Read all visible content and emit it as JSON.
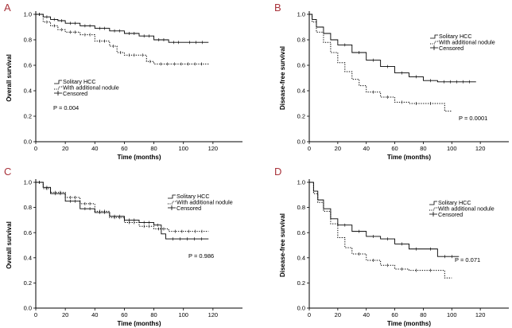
{
  "chart_data": [
    {
      "type": "line",
      "panel": "A",
      "ylabel": "Overall survival",
      "xlabel": "Time (months)",
      "xlim": [
        0,
        140
      ],
      "xticks": [
        0,
        20,
        40,
        60,
        80,
        100,
        120
      ],
      "ylim": [
        0,
        1.0
      ],
      "yticks": [
        "0.0",
        "0.2",
        "0.4",
        "0.6",
        "0.8",
        "1.0"
      ],
      "legend": [
        "Solitary HCC",
        "With additional nodule",
        "Censored"
      ],
      "legend_position": "left-middle",
      "pvalue": "P = 0.004",
      "series": [
        {
          "name": "Solitary HCC",
          "style": "solid",
          "x": [
            0,
            5,
            10,
            15,
            20,
            30,
            40,
            50,
            60,
            70,
            80,
            90,
            100,
            117
          ],
          "y": [
            1.0,
            0.98,
            0.96,
            0.95,
            0.93,
            0.91,
            0.89,
            0.87,
            0.85,
            0.83,
            0.8,
            0.78,
            0.78,
            0.78
          ]
        },
        {
          "name": "With additional nodule",
          "style": "dotted",
          "x": [
            0,
            5,
            10,
            15,
            20,
            30,
            40,
            50,
            55,
            60,
            70,
            75,
            80,
            117
          ],
          "y": [
            1.0,
            0.94,
            0.91,
            0.88,
            0.86,
            0.84,
            0.79,
            0.75,
            0.7,
            0.68,
            0.68,
            0.63,
            0.61,
            0.61
          ]
        }
      ]
    },
    {
      "type": "line",
      "panel": "B",
      "ylabel": "Disease-free survival",
      "xlabel": "Time (months)",
      "xlim": [
        0,
        140
      ],
      "xticks": [
        0,
        20,
        40,
        60,
        80,
        100,
        120
      ],
      "ylim": [
        0,
        1.0
      ],
      "yticks": [
        "0.0",
        "0.2",
        "0.4",
        "0.6",
        "0.8",
        "1.0"
      ],
      "legend": [
        "Solitary HCC",
        "With additional nodule",
        "Censored"
      ],
      "legend_position": "top-right",
      "pvalue": "P = 0.0001",
      "series": [
        {
          "name": "Solitary HCC",
          "style": "solid",
          "x": [
            0,
            2,
            5,
            10,
            15,
            20,
            30,
            40,
            50,
            60,
            70,
            80,
            90,
            117
          ],
          "y": [
            1.0,
            0.96,
            0.9,
            0.85,
            0.8,
            0.76,
            0.7,
            0.64,
            0.59,
            0.54,
            0.51,
            0.48,
            0.47,
            0.47
          ]
        },
        {
          "name": "With additional nodule",
          "style": "dotted",
          "x": [
            0,
            2,
            5,
            10,
            15,
            20,
            25,
            30,
            35,
            40,
            50,
            60,
            70,
            80,
            90,
            95,
            100
          ],
          "y": [
            1.0,
            0.94,
            0.86,
            0.78,
            0.7,
            0.62,
            0.55,
            0.49,
            0.44,
            0.39,
            0.35,
            0.31,
            0.3,
            0.3,
            0.3,
            0.24,
            0.24
          ]
        }
      ]
    },
    {
      "type": "line",
      "panel": "C",
      "ylabel": "Overall survival",
      "xlabel": "Time (months)",
      "xlim": [
        0,
        140
      ],
      "xticks": [
        0,
        20,
        40,
        60,
        80,
        100,
        120
      ],
      "ylim": [
        0,
        1.0
      ],
      "yticks": [
        "0.0",
        "0.2",
        "0.4",
        "0.6",
        "0.8",
        "1.0"
      ],
      "legend": [
        "Solitary HCC",
        "With additional nodule",
        "Censored"
      ],
      "legend_position": "top-right",
      "pvalue": "P = 0.986",
      "series": [
        {
          "name": "Solitary HCC",
          "style": "solid",
          "x": [
            0,
            5,
            10,
            20,
            30,
            40,
            50,
            60,
            70,
            80,
            85,
            88,
            117
          ],
          "y": [
            1.0,
            0.96,
            0.91,
            0.85,
            0.79,
            0.76,
            0.73,
            0.7,
            0.68,
            0.66,
            0.59,
            0.55,
            0.55
          ]
        },
        {
          "name": "With additional nodule",
          "style": "dotted",
          "x": [
            0,
            5,
            10,
            20,
            30,
            40,
            50,
            60,
            70,
            80,
            90,
            117
          ],
          "y": [
            1.0,
            0.95,
            0.92,
            0.88,
            0.83,
            0.77,
            0.72,
            0.68,
            0.65,
            0.63,
            0.61,
            0.61
          ]
        }
      ]
    },
    {
      "type": "line",
      "panel": "D",
      "ylabel": "Disease-free survival",
      "xlabel": "Time (months)",
      "xlim": [
        0,
        140
      ],
      "xticks": [
        0,
        20,
        40,
        60,
        80,
        100,
        120
      ],
      "ylim": [
        0,
        1.0
      ],
      "yticks": [
        "0.0",
        "0.2",
        "0.4",
        "0.6",
        "0.8",
        "1.0"
      ],
      "legend": [
        "Solitary HCC",
        "With additional nodule",
        "Censored"
      ],
      "legend_position": "top-right",
      "pvalue": "P = 0.071",
      "series": [
        {
          "name": "Solitary HCC",
          "style": "solid",
          "x": [
            0,
            3,
            6,
            10,
            15,
            20,
            30,
            40,
            50,
            60,
            70,
            80,
            90,
            105
          ],
          "y": [
            1.0,
            0.93,
            0.86,
            0.79,
            0.71,
            0.66,
            0.61,
            0.57,
            0.55,
            0.51,
            0.47,
            0.47,
            0.41,
            0.41
          ]
        },
        {
          "name": "With additional nodule",
          "style": "dotted",
          "x": [
            0,
            3,
            6,
            10,
            15,
            20,
            25,
            30,
            40,
            50,
            60,
            70,
            80,
            90,
            95,
            100
          ],
          "y": [
            1.0,
            0.91,
            0.84,
            0.77,
            0.67,
            0.56,
            0.48,
            0.43,
            0.38,
            0.34,
            0.31,
            0.3,
            0.3,
            0.3,
            0.24,
            0.24
          ]
        }
      ]
    }
  ]
}
